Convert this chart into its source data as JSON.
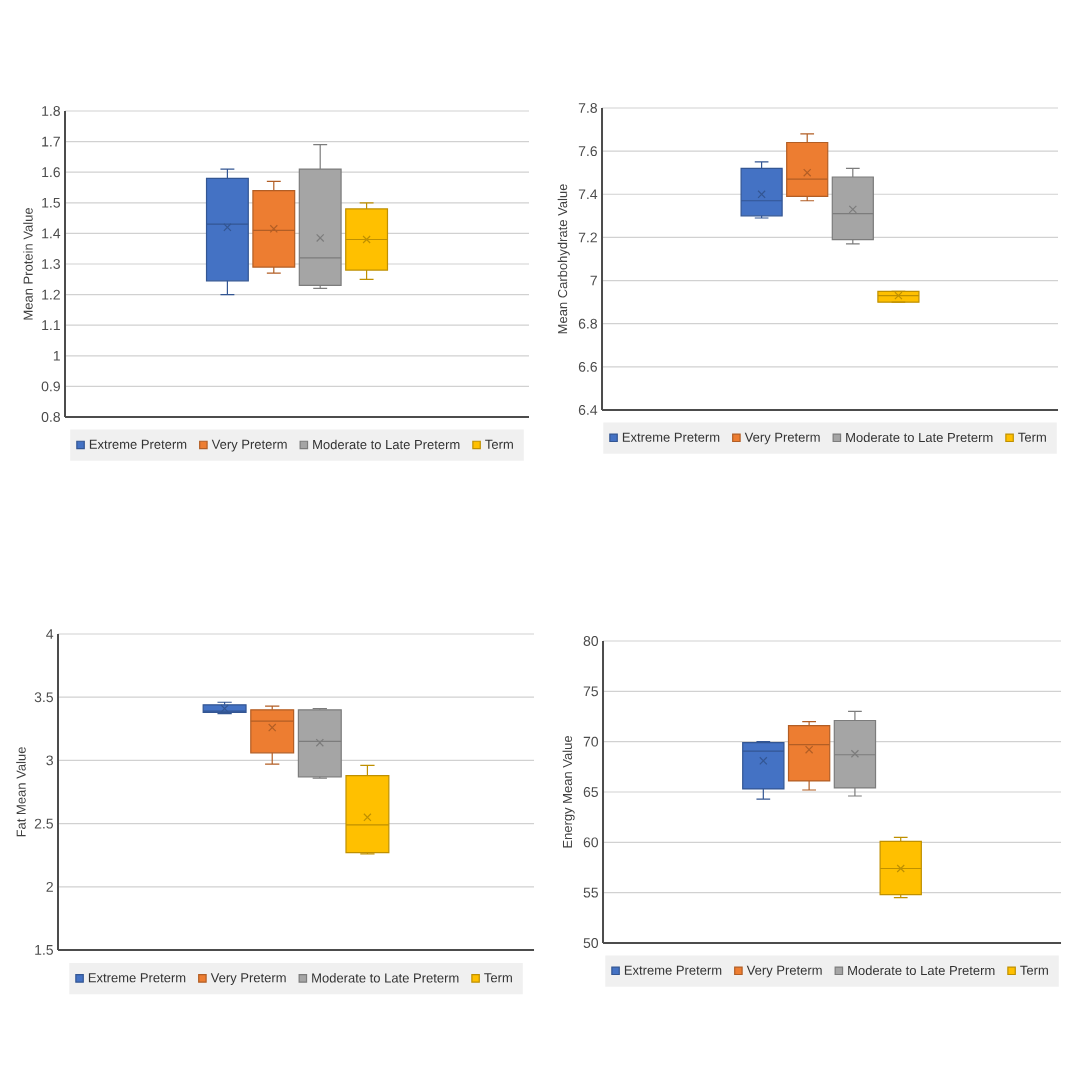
{
  "chart_data": [
    {
      "type": "box",
      "ylabel": "Mean Protein Value",
      "categories": [
        null
      ],
      "ylim": [
        0.8,
        1.8
      ],
      "yticks": [
        0.8,
        0.9,
        1,
        1.1,
        1.2,
        1.3,
        1.4,
        1.5,
        1.6,
        1.7,
        1.8
      ],
      "grid": "y",
      "legend": "bottom",
      "tick_labels": "y",
      "series": [
        {
          "name": "Extreme Preterm",
          "color": "#4472c4",
          "boxes": [
            {
              "low": 1.2,
              "q1": 1.245,
              "median": 1.43,
              "q3": 1.58,
              "high": 1.61,
              "mean": 1.42
            }
          ]
        },
        {
          "name": "Very Preterm",
          "color": "#ed7d31",
          "boxes": [
            {
              "low": 1.27,
              "q1": 1.29,
              "median": 1.41,
              "q3": 1.54,
              "high": 1.57,
              "mean": 1.415
            }
          ]
        },
        {
          "name": "Moderate to Late Preterm",
          "color": "#a5a5a5",
          "boxes": [
            {
              "low": 1.22,
              "q1": 1.23,
              "median": 1.32,
              "q3": 1.61,
              "high": 1.69,
              "mean": 1.385
            }
          ]
        },
        {
          "name": "Term",
          "color": "#ffc000",
          "boxes": [
            {
              "low": 1.25,
              "q1": 1.28,
              "median": 1.38,
              "q3": 1.48,
              "high": 1.5,
              "mean": 1.38
            }
          ]
        }
      ]
    },
    {
      "type": "box",
      "ylabel": "Mean Carbohydrate Value",
      "categories": [
        null
      ],
      "ylim": [
        6.4,
        7.8
      ],
      "yticks": [
        6.4,
        6.6,
        6.8,
        7,
        7.2,
        7.4,
        7.6,
        7.8
      ],
      "grid": "y",
      "legend": "bottom",
      "tick_labels": "y",
      "series": [
        {
          "name": "Extreme Preterm",
          "color": "#4472c4",
          "boxes": [
            {
              "low": 7.29,
              "q1": 7.3,
              "median": 7.37,
              "q3": 7.52,
              "high": 7.55,
              "mean": 7.4
            }
          ]
        },
        {
          "name": "Very Preterm",
          "color": "#ed7d31",
          "boxes": [
            {
              "low": 7.37,
              "q1": 7.39,
              "median": 7.47,
              "q3": 7.64,
              "high": 7.68,
              "mean": 7.5
            }
          ]
        },
        {
          "name": "Moderate to Late Preterm",
          "color": "#a5a5a5",
          "boxes": [
            {
              "low": 7.17,
              "q1": 7.19,
              "median": 7.31,
              "q3": 7.48,
              "high": 7.52,
              "mean": 7.33
            }
          ]
        },
        {
          "name": "Term",
          "color": "#ffc000",
          "boxes": [
            {
              "low": 6.9,
              "q1": 6.9,
              "median": 6.93,
              "q3": 6.95,
              "high": 6.95,
              "mean": 6.93
            }
          ]
        }
      ]
    },
    {
      "type": "box",
      "ylabel": "Fat Mean Value",
      "categories": [
        null
      ],
      "ylim": [
        1.5,
        4
      ],
      "yticks": [
        1.5,
        2,
        2.5,
        3,
        3.5,
        4
      ],
      "grid": "y",
      "legend": "bottom",
      "tick_labels": "y",
      "series": [
        {
          "name": "Extreme Preterm",
          "color": "#4472c4",
          "boxes": [
            {
              "low": 3.37,
              "q1": 3.38,
              "median": 3.39,
              "q3": 3.44,
              "high": 3.46,
              "mean": 3.41
            }
          ]
        },
        {
          "name": "Very Preterm",
          "color": "#ed7d31",
          "boxes": [
            {
              "low": 2.97,
              "q1": 3.06,
              "median": 3.31,
              "q3": 3.4,
              "high": 3.43,
              "mean": 3.26
            }
          ]
        },
        {
          "name": "Moderate to Late Preterm",
          "color": "#a5a5a5",
          "boxes": [
            {
              "low": 2.86,
              "q1": 2.87,
              "median": 3.15,
              "q3": 3.4,
              "high": 3.41,
              "mean": 3.14
            }
          ]
        },
        {
          "name": "Term",
          "color": "#ffc000",
          "boxes": [
            {
              "low": 2.26,
              "q1": 2.27,
              "median": 2.49,
              "q3": 2.88,
              "high": 2.96,
              "mean": 2.55
            }
          ]
        }
      ]
    },
    {
      "type": "box",
      "ylabel": "Energy Mean Value",
      "categories": [
        null
      ],
      "ylim": [
        50,
        80
      ],
      "yticks": [
        50,
        55,
        60,
        65,
        70,
        75,
        80
      ],
      "grid": "y",
      "legend": "bottom",
      "tick_labels": "y",
      "series": [
        {
          "name": "Extreme Preterm",
          "color": "#4472c4",
          "boxes": [
            {
              "low": 64.3,
              "q1": 65.3,
              "median": 69.05,
              "q3": 69.9,
              "high": 70,
              "mean": 68.1
            }
          ]
        },
        {
          "name": "Very Preterm",
          "color": "#ed7d31",
          "boxes": [
            {
              "low": 65.2,
              "q1": 66.1,
              "median": 69.7,
              "q3": 71.6,
              "high": 72,
              "mean": 69.2
            }
          ]
        },
        {
          "name": "Moderate to Late Preterm",
          "color": "#a5a5a5",
          "boxes": [
            {
              "low": 64.6,
              "q1": 65.4,
              "median": 68.7,
              "q3": 72.1,
              "high": 73,
              "mean": 68.8
            }
          ]
        },
        {
          "name": "Term",
          "color": "#ffc000",
          "boxes": [
            {
              "low": 54.5,
              "q1": 54.8,
              "median": 57.4,
              "q3": 60.1,
              "high": 60.5,
              "mean": 57.4
            }
          ]
        }
      ]
    }
  ]
}
